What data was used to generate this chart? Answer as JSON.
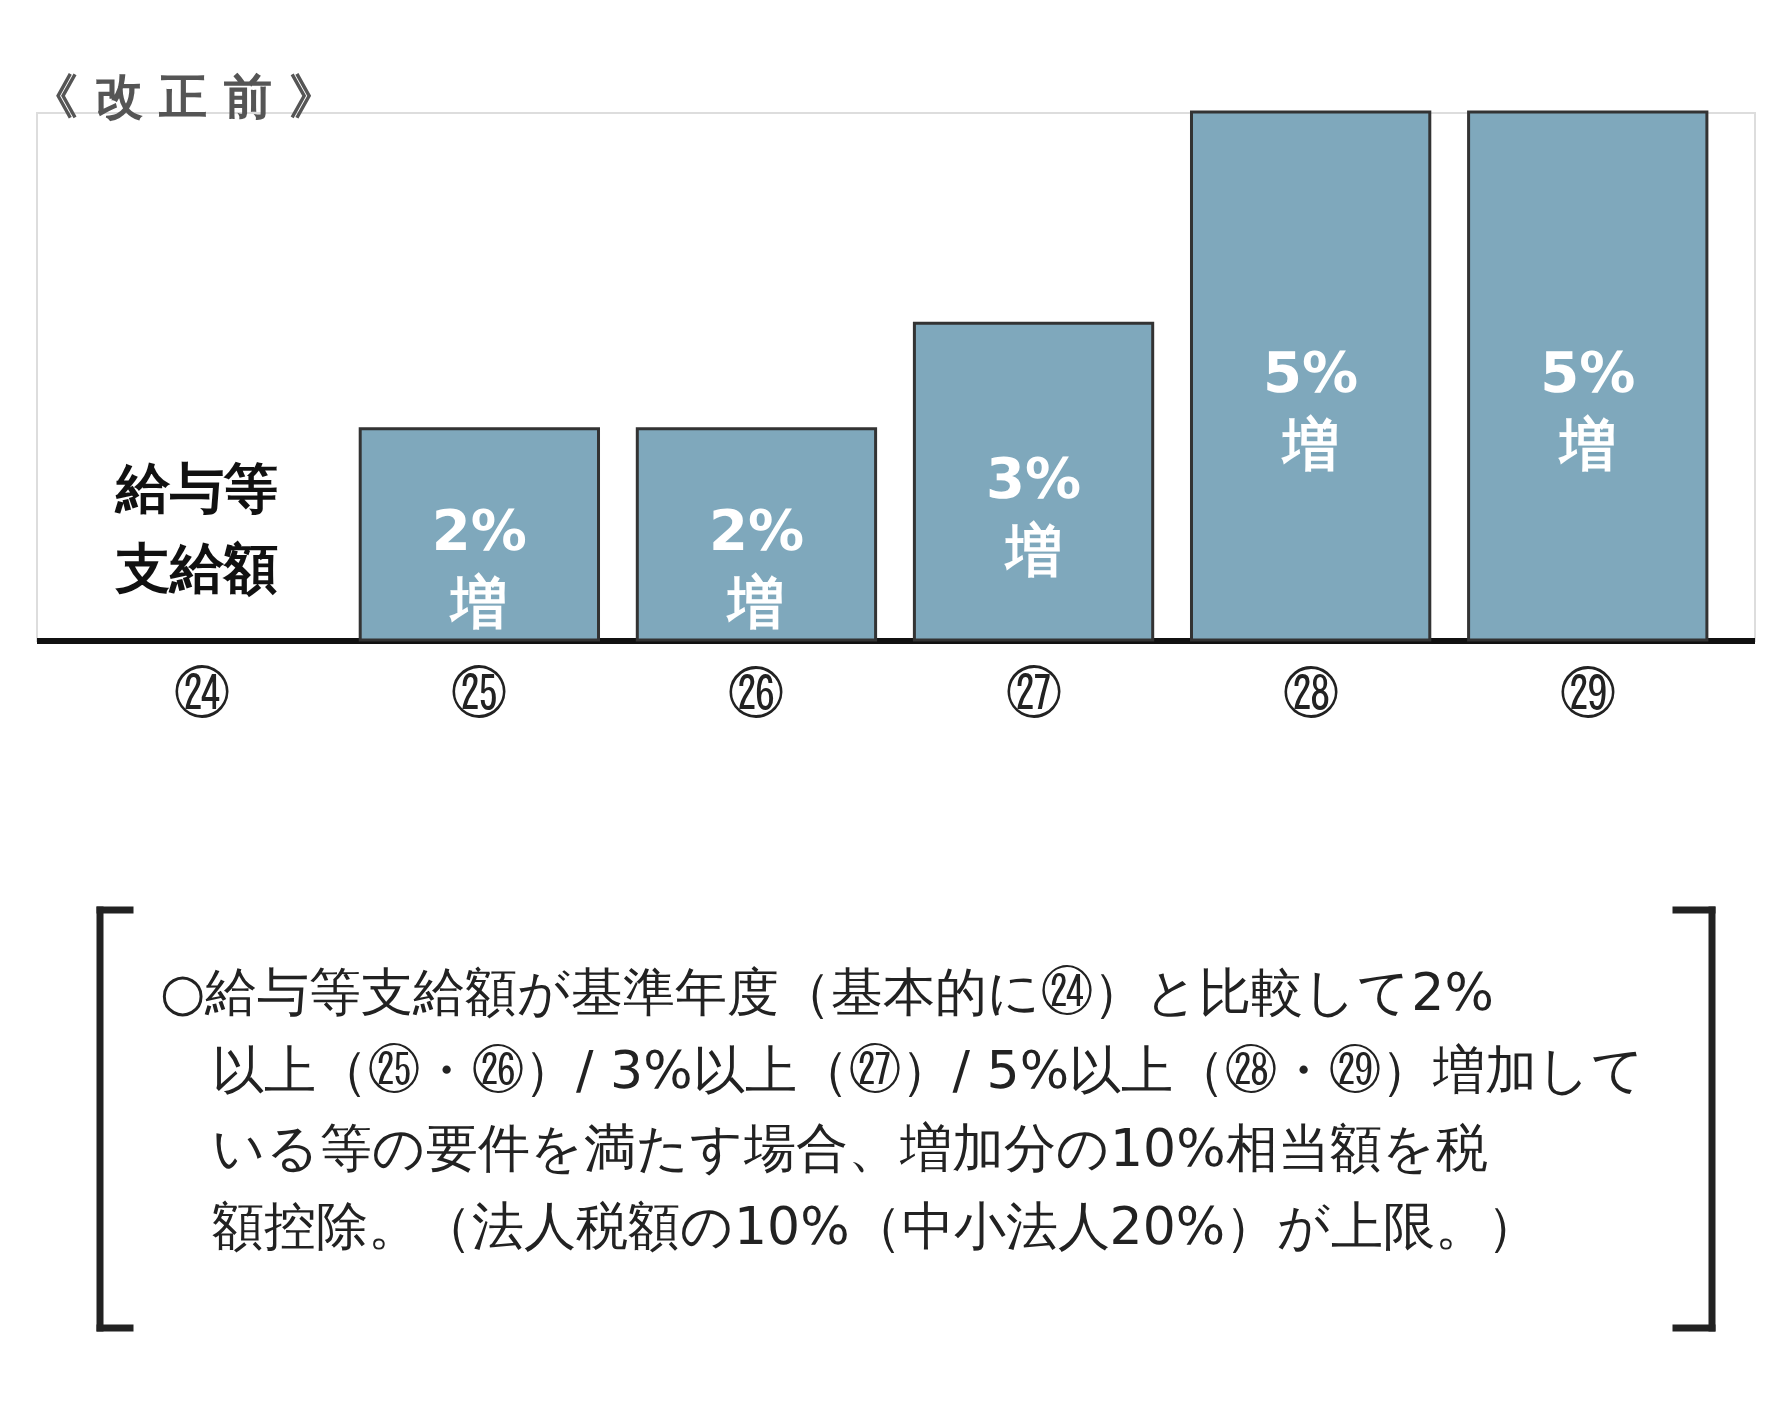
{
  "chart_data": {
    "type": "bar",
    "title": "《 改 正 前 》",
    "ylabel": "給与等支給額",
    "categories": [
      "㉔",
      "㉕",
      "㉖",
      "㉗",
      "㉘",
      "㉙"
    ],
    "values": [
      null,
      2,
      2,
      3,
      5,
      5
    ],
    "color": "#7fa8bc",
    "value_labels": [
      null,
      "2%\n増",
      "2%\n増",
      "3%\n増",
      "5%\n増",
      "5%\n増"
    ],
    "annotations": [
      "○給与等支給額が基準年度（基本的に㉔）と比較して2%以上（㉕・㉖）/ 3%以上（㉗）/ 5%以上（㉘・㉙）増加している等の要件を満たす場合、増加分の10%相当額を税額控除。（法人税額の10%（中小法人20%）が上限。）"
    ]
  }
}
